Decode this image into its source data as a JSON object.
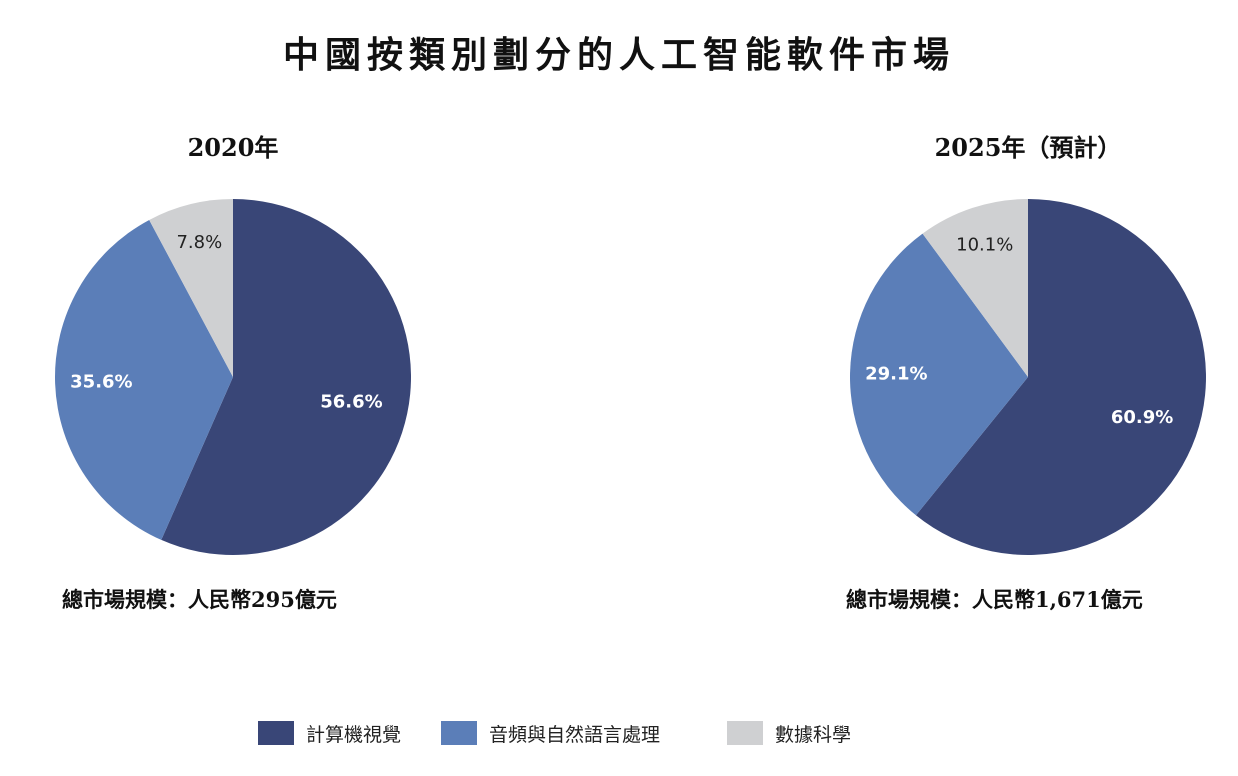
{
  "title": "中國按類別劃分的人工智能軟件市場",
  "colors": {
    "computer_vision": "#394677",
    "audio_nlp": "#5b7eb8",
    "data_science": "#cfd0d2",
    "label_dark": "#222222",
    "label_light": "#ffffff"
  },
  "legend": [
    {
      "label": "計算機視覺",
      "color": "#394677"
    },
    {
      "label": "音頻與自然語言處理",
      "color": "#5b7eb8"
    },
    {
      "label": "數據科學",
      "color": "#cfd0d2"
    }
  ],
  "chart_data": [
    {
      "type": "pie",
      "title": "2020年",
      "caption": "總市場規模：人民幣295億元",
      "slices": [
        {
          "label": "計算機視覺",
          "value": 56.6,
          "display": "56.6%"
        },
        {
          "label": "音頻與自然語言處理",
          "value": 35.6,
          "display": "35.6%"
        },
        {
          "label": "數據科學",
          "value": 7.8,
          "display": "7.8%"
        }
      ]
    },
    {
      "type": "pie",
      "title": "2025年（預計）",
      "caption": "總市場規模：人民幣1,671億元",
      "slices": [
        {
          "label": "計算機視覺",
          "value": 60.9,
          "display": "60.9%"
        },
        {
          "label": "音頻與自然語言處理",
          "value": 29.1,
          "display": "29.1%"
        },
        {
          "label": "數據科學",
          "value": 10.1,
          "display": "10.1%"
        }
      ]
    }
  ]
}
